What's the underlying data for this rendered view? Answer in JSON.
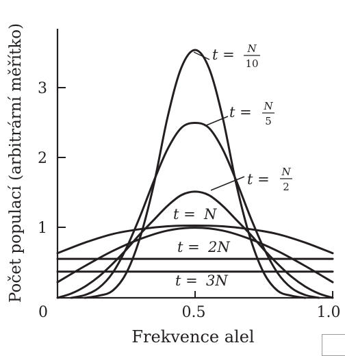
{
  "chart_data": {
    "type": "line",
    "title": "",
    "xlabel": "Frekvence alel",
    "ylabel": "Počet populací (arbitrární měřítko)",
    "xlim": [
      0,
      1
    ],
    "ylim": [
      0,
      3.8
    ],
    "x_ticks": [
      {
        "value": 0,
        "label": "0"
      },
      {
        "value": 0.5,
        "label": "0.5"
      },
      {
        "value": 1,
        "label": "1.0"
      }
    ],
    "y_ticks": [
      {
        "value": 1,
        "label": "1"
      },
      {
        "value": 2,
        "label": "2"
      },
      {
        "value": 3,
        "label": "3"
      }
    ],
    "grid": false,
    "line_color": "#231f20",
    "series": [
      {
        "name": "t = N/10",
        "label_parts": {
          "prefix": "t = ",
          "numerator": "N",
          "denominator": "10"
        },
        "x": [
          0.1,
          0.15,
          0.2,
          0.25,
          0.3,
          0.35,
          0.4,
          0.45,
          0.5,
          0.55,
          0.6,
          0.65,
          0.7,
          0.75,
          0.8,
          0.85,
          0.9
        ],
        "y": [
          0.0,
          0.03,
          0.1,
          0.35,
          0.85,
          1.6,
          2.55,
          3.25,
          3.5,
          3.25,
          2.55,
          1.6,
          0.85,
          0.35,
          0.1,
          0.03,
          0.0
        ]
      },
      {
        "name": "t = N/5",
        "label_parts": {
          "prefix": "t = ",
          "numerator": "N",
          "denominator": "5"
        },
        "x": [
          0.05,
          0.1,
          0.15,
          0.2,
          0.25,
          0.3,
          0.35,
          0.4,
          0.45,
          0.5,
          0.55,
          0.6,
          0.65,
          0.7,
          0.75,
          0.8,
          0.85,
          0.9,
          0.95
        ],
        "y": [
          0.0,
          0.04,
          0.14,
          0.35,
          0.7,
          1.15,
          1.65,
          2.1,
          2.4,
          2.47,
          2.4,
          2.1,
          1.65,
          1.15,
          0.7,
          0.35,
          0.14,
          0.04,
          0.0
        ]
      },
      {
        "name": "t = N/2",
        "label_parts": {
          "prefix": "t = ",
          "numerator": "N",
          "denominator": "2"
        },
        "x": [
          0,
          0.05,
          0.1,
          0.15,
          0.2,
          0.25,
          0.3,
          0.35,
          0.4,
          0.45,
          0.5,
          0.55,
          0.6,
          0.65,
          0.7,
          0.75,
          0.8,
          0.85,
          0.9,
          0.95,
          1.0
        ],
        "y": [
          0.0,
          0.06,
          0.16,
          0.3,
          0.48,
          0.68,
          0.9,
          1.1,
          1.3,
          1.45,
          1.5,
          1.45,
          1.3,
          1.1,
          0.9,
          0.68,
          0.48,
          0.3,
          0.16,
          0.06,
          0.0
        ]
      },
      {
        "name": "t = N",
        "label_parts": {
          "prefix": "t = ",
          "numerator": "N",
          "denominator": ""
        },
        "x": [
          0,
          0.1,
          0.2,
          0.3,
          0.4,
          0.5,
          0.6,
          0.7,
          0.8,
          0.9,
          1.0
        ],
        "y": [
          0.22,
          0.45,
          0.66,
          0.83,
          0.95,
          0.99,
          0.95,
          0.83,
          0.66,
          0.45,
          0.22
        ]
      },
      {
        "name": "t = 2N",
        "label_parts": {
          "prefix": "t = ",
          "numerator": "2N",
          "denominator": ""
        },
        "x": [
          0,
          0.25,
          0.5,
          0.75,
          1.0
        ],
        "y": [
          0.55,
          0.55,
          0.55,
          0.55,
          0.55
        ]
      },
      {
        "name": "t = 3N",
        "label_parts": {
          "prefix": "t = ",
          "numerator": "3N",
          "denominator": ""
        },
        "x": [
          0,
          0.25,
          0.5,
          0.75,
          1.0
        ],
        "y": [
          0.37,
          0.37,
          0.37,
          0.37,
          0.37
        ]
      }
    ],
    "extra_curve": {
      "description_visible": false,
      "x": [
        0,
        0.1,
        0.2,
        0.3,
        0.4,
        0.5,
        0.6,
        0.7,
        0.8,
        0.9,
        1.0
      ],
      "y": [
        0.63,
        0.78,
        0.9,
        0.97,
        1.01,
        1.02,
        1.01,
        0.97,
        0.9,
        0.78,
        0.63
      ]
    }
  }
}
